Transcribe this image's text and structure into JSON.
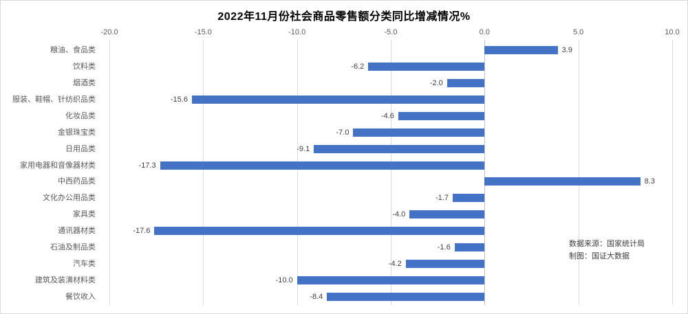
{
  "chart_data": {
    "type": "bar",
    "orientation": "horizontal",
    "title": "2022年11月份社会商品零售额分类同比增减情况%",
    "categories": [
      "粮油、食品类",
      "饮料类",
      "烟酒类",
      "服装、鞋帽、针纺织品类",
      "化妆品类",
      "金银珠宝类",
      "日用品类",
      "家用电器和音像器材类",
      "中西药品类",
      "文化办公用品类",
      "家具类",
      "通讯器材类",
      "石油及制品类",
      "汽车类",
      "建筑及装潢材料类",
      "餐饮收入"
    ],
    "values": [
      3.9,
      -6.2,
      -2.0,
      -15.6,
      -4.6,
      -7.0,
      -9.1,
      -17.3,
      8.3,
      -1.7,
      -4.0,
      -17.6,
      -1.6,
      -4.2,
      -10.0,
      -8.4
    ],
    "value_labels": [
      "3.9",
      "-6.2",
      "-2.0",
      "-15.6",
      "-4.6",
      "-7.0",
      "-9.1",
      "-17.3",
      "8.3",
      "-1.7",
      "-4.0",
      "-17.6",
      "-1.6",
      "-4.2",
      "-10.0",
      "-8.4"
    ],
    "xlim": [
      -20,
      10
    ],
    "x_ticks": [
      -20,
      -15,
      -10,
      -5,
      0,
      5,
      10
    ],
    "x_tick_labels": [
      "-20.0",
      "-15.0",
      "-10.0",
      "-5.0",
      "0.0",
      "5.0",
      "10.0"
    ],
    "xlabel": "",
    "ylabel": "",
    "grid": "vertical-gridlines-on",
    "axis_position": "top",
    "legend": "none",
    "bar_color": "#4472c4",
    "gridline_color": "#d9d9d9",
    "zero_line_color": "#bdbdbd",
    "tick_label_color": "#595959",
    "category_label_color": "#595959",
    "value_label_color": "#404040"
  },
  "source_note": {
    "line1": "数据来源：国家统计局",
    "line2": "制图：国证大数据"
  }
}
